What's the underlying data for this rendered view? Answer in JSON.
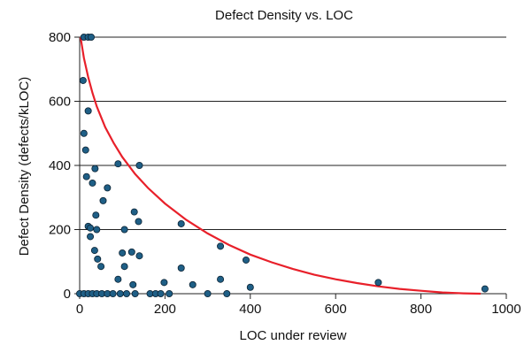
{
  "chart_data": {
    "type": "scatter",
    "title": "Defect Density vs. LOC",
    "xlabel": "LOC under review",
    "ylabel": "Defect Density (defects/kLOC)",
    "xlim": [
      0,
      1000
    ],
    "ylim": [
      0,
      800
    ],
    "x_ticks": [
      "0",
      "200",
      "400",
      "600",
      "800",
      "1000"
    ],
    "y_ticks": [
      "0",
      "200",
      "400",
      "600",
      "800"
    ],
    "grid": "horizontal",
    "point_color": "#1f5f86",
    "curve_color": "#e8202a",
    "points": [
      {
        "x": 10,
        "y": 800
      },
      {
        "x": 20,
        "y": 800
      },
      {
        "x": 27,
        "y": 800
      },
      {
        "x": 8,
        "y": 665
      },
      {
        "x": 20,
        "y": 570
      },
      {
        "x": 10,
        "y": 500
      },
      {
        "x": 14,
        "y": 448
      },
      {
        "x": 90,
        "y": 405
      },
      {
        "x": 140,
        "y": 400
      },
      {
        "x": 36,
        "y": 390
      },
      {
        "x": 16,
        "y": 365
      },
      {
        "x": 30,
        "y": 345
      },
      {
        "x": 65,
        "y": 330
      },
      {
        "x": 55,
        "y": 290
      },
      {
        "x": 128,
        "y": 255
      },
      {
        "x": 38,
        "y": 245
      },
      {
        "x": 138,
        "y": 225
      },
      {
        "x": 238,
        "y": 218
      },
      {
        "x": 20,
        "y": 210
      },
      {
        "x": 25,
        "y": 205
      },
      {
        "x": 40,
        "y": 200
      },
      {
        "x": 105,
        "y": 200
      },
      {
        "x": 25,
        "y": 178
      },
      {
        "x": 330,
        "y": 148
      },
      {
        "x": 35,
        "y": 135
      },
      {
        "x": 122,
        "y": 130
      },
      {
        "x": 100,
        "y": 127
      },
      {
        "x": 140,
        "y": 118
      },
      {
        "x": 42,
        "y": 108
      },
      {
        "x": 390,
        "y": 105
      },
      {
        "x": 50,
        "y": 85
      },
      {
        "x": 105,
        "y": 85
      },
      {
        "x": 238,
        "y": 80
      },
      {
        "x": 90,
        "y": 45
      },
      {
        "x": 330,
        "y": 45
      },
      {
        "x": 198,
        "y": 35
      },
      {
        "x": 700,
        "y": 35
      },
      {
        "x": 125,
        "y": 28
      },
      {
        "x": 265,
        "y": 28
      },
      {
        "x": 400,
        "y": 20
      },
      {
        "x": 950,
        "y": 15
      },
      {
        "x": 0,
        "y": 0
      },
      {
        "x": 10,
        "y": 0
      },
      {
        "x": 20,
        "y": 0
      },
      {
        "x": 30,
        "y": 0
      },
      {
        "x": 40,
        "y": 0
      },
      {
        "x": 52,
        "y": 0
      },
      {
        "x": 65,
        "y": 0
      },
      {
        "x": 78,
        "y": 0
      },
      {
        "x": 95,
        "y": 0
      },
      {
        "x": 110,
        "y": 0
      },
      {
        "x": 130,
        "y": 0
      },
      {
        "x": 165,
        "y": 0
      },
      {
        "x": 178,
        "y": 0
      },
      {
        "x": 190,
        "y": 0
      },
      {
        "x": 210,
        "y": 0
      },
      {
        "x": 300,
        "y": 0
      },
      {
        "x": 345,
        "y": 0
      }
    ],
    "trend_curve": [
      [
        2,
        800
      ],
      [
        10,
        735
      ],
      [
        20,
        676
      ],
      [
        30,
        626
      ],
      [
        40,
        584
      ],
      [
        60,
        519
      ],
      [
        80,
        469
      ],
      [
        100,
        426
      ],
      [
        130,
        373
      ],
      [
        160,
        330
      ],
      [
        200,
        281
      ],
      [
        250,
        230
      ],
      [
        300,
        188
      ],
      [
        350,
        152
      ],
      [
        400,
        122
      ],
      [
        450,
        98
      ],
      [
        500,
        77
      ],
      [
        550,
        59
      ],
      [
        600,
        45
      ],
      [
        650,
        33
      ],
      [
        700,
        23
      ],
      [
        750,
        15
      ],
      [
        800,
        9
      ],
      [
        850,
        4
      ],
      [
        900,
        1
      ],
      [
        940,
        0
      ]
    ]
  }
}
